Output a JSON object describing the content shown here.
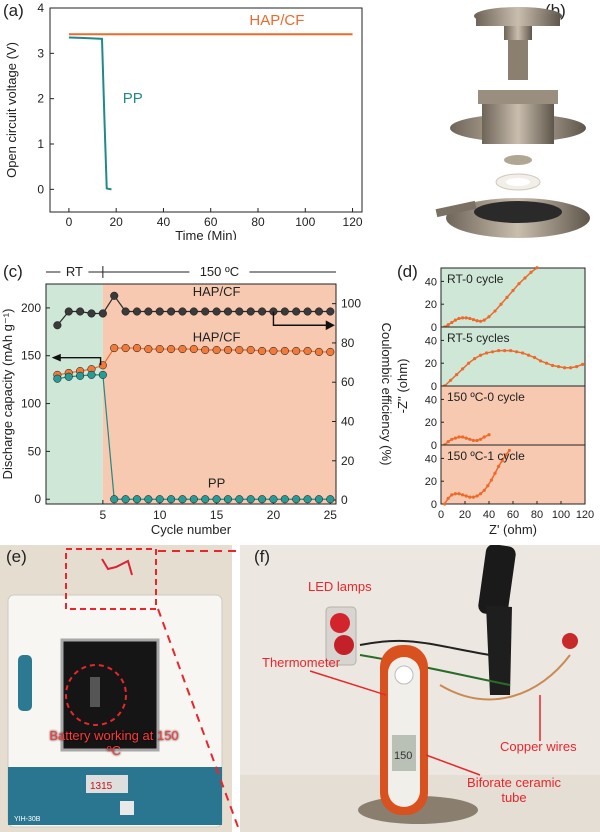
{
  "colors": {
    "hap": "#ec6a2b",
    "pp": "#1f8a86",
    "black": "#222222",
    "green_bg": "#cfe7d6",
    "orange_bg": "#f6c9b0",
    "red": "#e8262b"
  },
  "panel_labels": {
    "a": "(a)",
    "b": "(b)",
    "c": "(c)",
    "d": "(d)",
    "e": "(e)",
    "f": "(f)"
  },
  "chart_data": [
    {
      "id": "a",
      "type": "line",
      "xlabel": "Time (Min)",
      "ylabel": "Open circuit voltage (V)",
      "xlim": [
        -8,
        124
      ],
      "ylim": [
        -0.5,
        4
      ],
      "xticks": [
        0,
        20,
        40,
        60,
        80,
        100,
        120
      ],
      "yticks": [
        0,
        1,
        2,
        3,
        4
      ],
      "series": [
        {
          "name": "HAP/CF",
          "x": [
            0,
            120
          ],
          "y": [
            3.42,
            3.42
          ]
        },
        {
          "name": "PP",
          "x": [
            0,
            5,
            10,
            14,
            15,
            16,
            18
          ],
          "y": [
            3.35,
            3.34,
            3.33,
            3.32,
            1.6,
            0.02,
            0.0
          ]
        }
      ]
    },
    {
      "id": "c",
      "type": "scatter",
      "xlabel": "Cycle number",
      "ylabel": "Discharge capacity (mAh g⁻¹)",
      "y2label": "Coulombic efficiency (%)",
      "xlim": [
        0,
        25.5
      ],
      "ylim": [
        -5,
        225
      ],
      "y2lim": [
        -2,
        110
      ],
      "xticks": [
        5,
        10,
        15,
        20,
        25
      ],
      "yticks": [
        0,
        50,
        100,
        150,
        200
      ],
      "y2ticks": [
        0,
        20,
        40,
        60,
        80,
        100
      ],
      "region_labels": {
        "rt": "RT",
        "hot": "150 ºC"
      },
      "annotations": {
        "hap_ce": "HAP/CF",
        "hap_cap": "HAP/CF",
        "pp": "PP"
      },
      "series": [
        {
          "name": "HAP/CF",
          "axis": "right",
          "x": [
            1,
            2,
            3,
            4,
            5,
            6,
            7,
            8,
            9,
            10,
            11,
            12,
            13,
            14,
            15,
            16,
            17,
            18,
            19,
            20,
            21,
            22,
            23,
            24,
            25
          ],
          "y": [
            89,
            96,
            96,
            95,
            95,
            104,
            96,
            96,
            96,
            96,
            96,
            96,
            96,
            96,
            96,
            96,
            96,
            96,
            96,
            96,
            96,
            96,
            96,
            96,
            96
          ]
        },
        {
          "name": "HAP/CF",
          "axis": "left",
          "x": [
            1,
            2,
            3,
            4,
            5,
            6,
            7,
            8,
            9,
            10,
            11,
            12,
            13,
            14,
            15,
            16,
            17,
            18,
            19,
            20,
            21,
            22,
            23,
            24,
            25
          ],
          "y": [
            130,
            132,
            134,
            136,
            140,
            158,
            158,
            158,
            157,
            157,
            157,
            157,
            157,
            156,
            156,
            156,
            156,
            156,
            155,
            155,
            155,
            155,
            155,
            154,
            154
          ]
        },
        {
          "name": "PP",
          "axis": "left",
          "x": [
            1,
            2,
            3,
            4,
            5,
            6,
            7,
            8,
            9,
            10,
            11,
            12,
            13,
            14,
            15,
            16,
            17,
            18,
            19,
            20,
            21,
            22,
            23,
            24,
            25
          ],
          "y": [
            126,
            128,
            129,
            130,
            130,
            0,
            0,
            0,
            0,
            0,
            0,
            0,
            0,
            0,
            0,
            0,
            0,
            0,
            0,
            0,
            0,
            0,
            0,
            0,
            0
          ]
        }
      ]
    },
    {
      "id": "d",
      "type": "line",
      "xlabel": "Z' (ohm)",
      "ylabel": "-Z'' (ohm)",
      "xlim": [
        0,
        120
      ],
      "xticks": [
        0,
        20,
        40,
        60,
        80,
        100,
        120
      ],
      "subplots": [
        {
          "label": "RT-0 cycle",
          "ylim": [
            0,
            50
          ],
          "yticks": [
            0,
            20,
            40
          ],
          "x": [
            3,
            6,
            9,
            12,
            15,
            18,
            21,
            24,
            27,
            30,
            33,
            36,
            40,
            45,
            50,
            55,
            60,
            65,
            70,
            75,
            80
          ],
          "y": [
            0,
            2,
            4,
            6,
            7.5,
            8,
            8,
            7.5,
            6.5,
            5.5,
            5,
            6,
            9,
            14,
            20,
            26,
            32,
            38,
            43,
            48,
            52
          ]
        },
        {
          "label": "RT-5 cycles",
          "ylim": [
            0,
            50
          ],
          "yticks": [
            0,
            20,
            40
          ],
          "x": [
            3,
            8,
            13,
            18,
            23,
            28,
            33,
            38,
            43,
            48,
            53,
            58,
            63,
            68,
            73,
            78,
            83,
            88,
            93,
            98,
            103,
            108,
            113,
            118
          ],
          "y": [
            0,
            5,
            10,
            15,
            20,
            24,
            27,
            29,
            30,
            31,
            31,
            31,
            30,
            29,
            27,
            25,
            22,
            20,
            18,
            17,
            16,
            16,
            17,
            19
          ]
        },
        {
          "label": "150 ºC-0 cycle",
          "ylim": [
            0,
            50
          ],
          "yticks": [
            0,
            20,
            40
          ],
          "x": [
            3,
            6,
            9,
            12,
            15,
            18,
            21,
            24,
            27,
            30,
            33,
            36,
            40
          ],
          "y": [
            0,
            3,
            5,
            6,
            7,
            7,
            6,
            5,
            4,
            4,
            5,
            7,
            9
          ]
        },
        {
          "label": "150 ºC-1 cycle",
          "ylim": [
            0,
            50
          ],
          "yticks": [
            0,
            20,
            40
          ],
          "x": [
            3,
            6,
            9,
            12,
            15,
            18,
            21,
            24,
            27,
            30,
            33,
            36,
            39,
            42,
            45,
            48,
            51,
            54,
            57
          ],
          "y": [
            0,
            5,
            8,
            9,
            9,
            8,
            7,
            6,
            6,
            7,
            9,
            12,
            16,
            21,
            27,
            33,
            38,
            43,
            47
          ]
        }
      ]
    }
  ],
  "photo_e": {
    "callout": "Battery working at 150 ºC",
    "plate_text": "YIH-30B"
  },
  "photo_f": {
    "callouts": {
      "led": "LED lamps",
      "thermometer": "Thermometer",
      "copper": "Copper wires",
      "tube": "Biforate ceramic tube"
    }
  }
}
